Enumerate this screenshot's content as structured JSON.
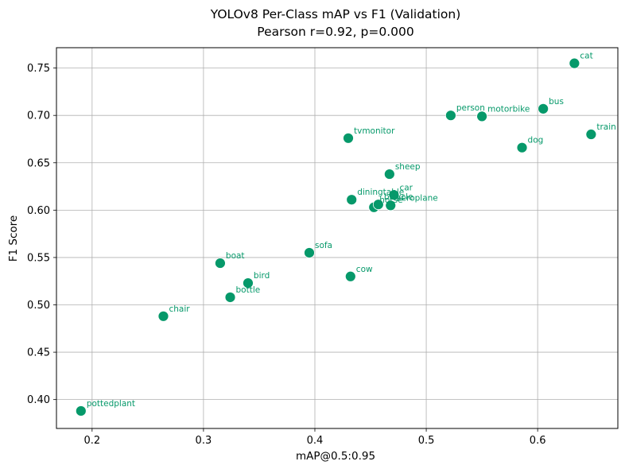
{
  "chart_data": {
    "type": "scatter",
    "title": "YOLOv8 Per-Class mAP vs F1 (Validation)",
    "subtitle": "Pearson r=0.92, p=0.000",
    "xlabel": "mAP@0.5:0.95",
    "ylabel": "F1 Score",
    "xlim": [
      0.168,
      0.672
    ],
    "ylim": [
      0.3695,
      0.7715
    ],
    "xticks": [
      0.2,
      0.3,
      0.4,
      0.5,
      0.6
    ],
    "xtick_labels": [
      "0.2",
      "0.3",
      "0.4",
      "0.5",
      "0.6"
    ],
    "yticks": [
      0.4,
      0.45,
      0.5,
      0.55,
      0.6,
      0.65,
      0.7,
      0.75
    ],
    "ytick_labels": [
      "0.40",
      "0.45",
      "0.50",
      "0.55",
      "0.60",
      "0.65",
      "0.70",
      "0.75"
    ],
    "grid": true,
    "color": "#06996a",
    "points": [
      {
        "label": "pottedplant",
        "x": 0.19,
        "y": 0.388
      },
      {
        "label": "chair",
        "x": 0.264,
        "y": 0.488
      },
      {
        "label": "boat",
        "x": 0.315,
        "y": 0.544
      },
      {
        "label": "bottle",
        "x": 0.324,
        "y": 0.508
      },
      {
        "label": "bird",
        "x": 0.34,
        "y": 0.523
      },
      {
        "label": "sofa",
        "x": 0.395,
        "y": 0.555
      },
      {
        "label": "tvmonitor",
        "x": 0.43,
        "y": 0.676
      },
      {
        "label": "cow",
        "x": 0.432,
        "y": 0.53
      },
      {
        "label": "diningtable",
        "x": 0.433,
        "y": 0.611
      },
      {
        "label": "horse",
        "x": 0.453,
        "y": 0.603
      },
      {
        "label": "bicycle",
        "x": 0.457,
        "y": 0.606
      },
      {
        "label": "sheep",
        "x": 0.467,
        "y": 0.638
      },
      {
        "label": "aeroplane",
        "x": 0.468,
        "y": 0.605
      },
      {
        "label": "car",
        "x": 0.471,
        "y": 0.616
      },
      {
        "label": "person",
        "x": 0.522,
        "y": 0.7
      },
      {
        "label": "motorbike",
        "x": 0.55,
        "y": 0.699
      },
      {
        "label": "dog",
        "x": 0.586,
        "y": 0.666
      },
      {
        "label": "bus",
        "x": 0.605,
        "y": 0.707
      },
      {
        "label": "cat",
        "x": 0.633,
        "y": 0.755
      },
      {
        "label": "train",
        "x": 0.648,
        "y": 0.68
      }
    ]
  }
}
